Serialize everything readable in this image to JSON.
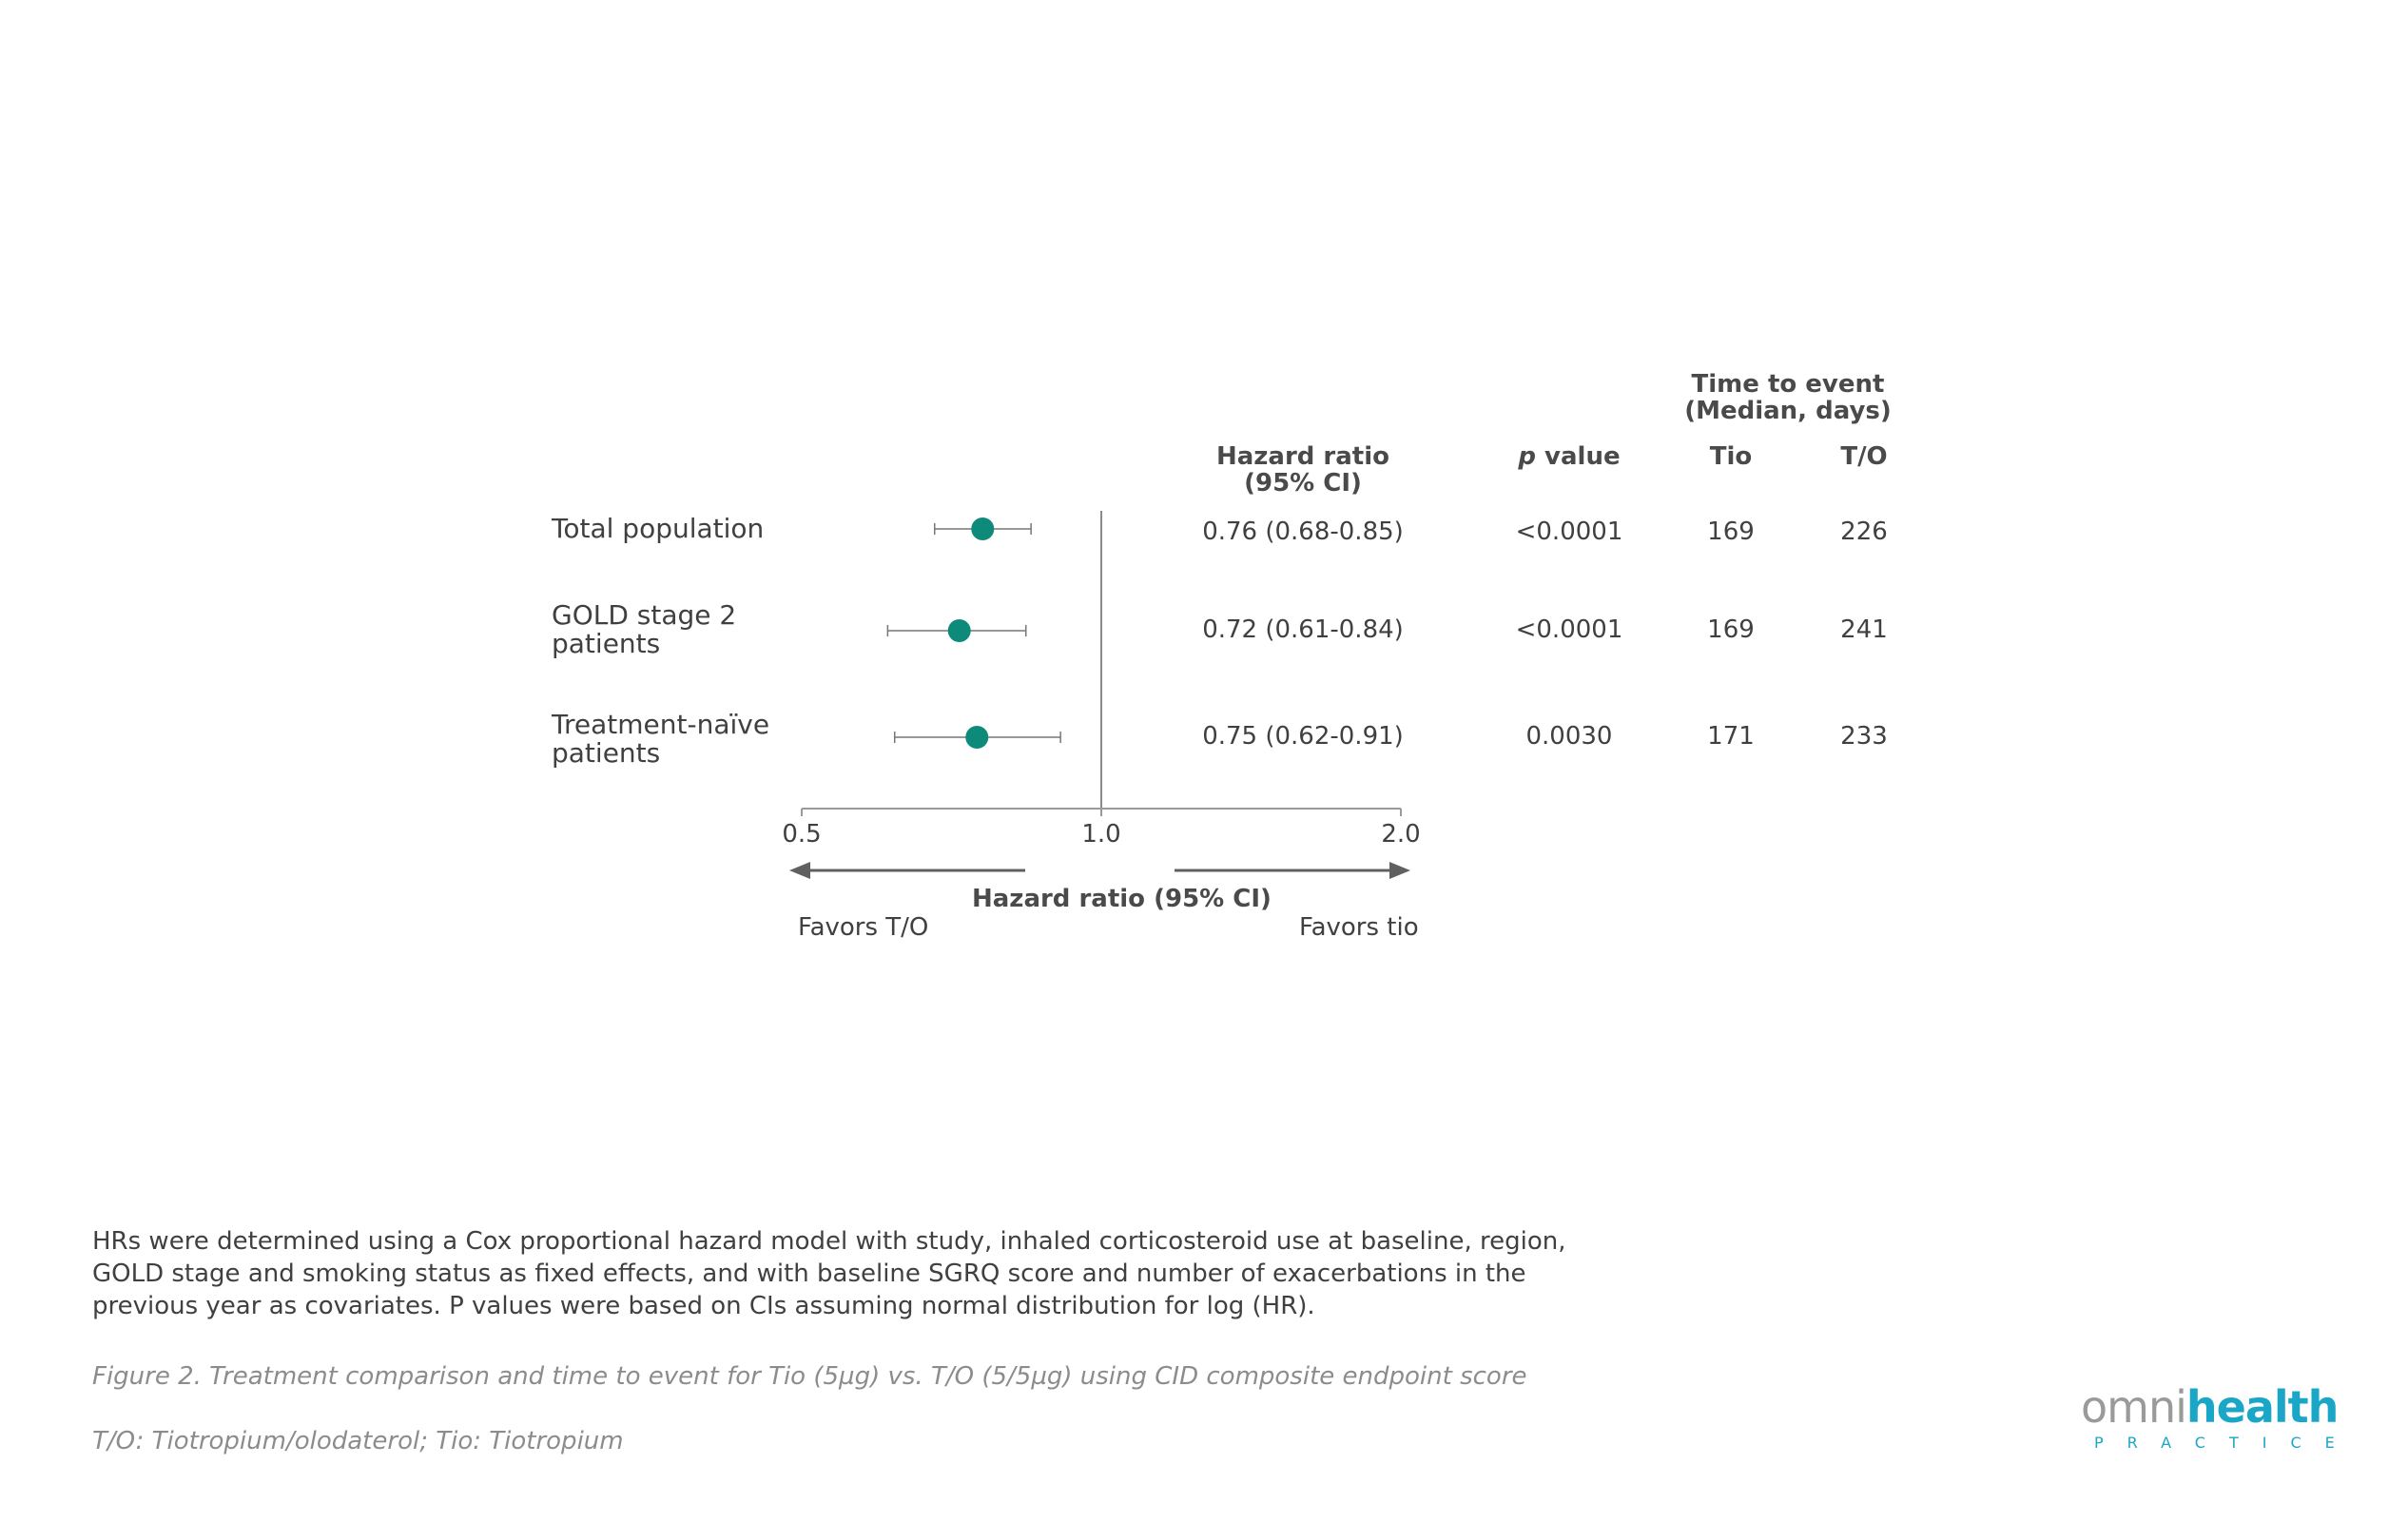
{
  "chart_data": {
    "type": "forest",
    "x_scale": "log",
    "xlim": [
      0.5,
      2.0
    ],
    "reference_line": 1.0,
    "x_ticks": [
      "0.5",
      "1.0",
      "2.0"
    ],
    "xlabel": "Hazard ratio (95% CI)",
    "favors_left": "Favors T/O",
    "favors_right": "Favors tio",
    "headers": {
      "time_to_event_line1": "Time to event",
      "time_to_event_line2": "(Median, days)",
      "hr_line1": "Hazard ratio",
      "hr_line2": "(95% CI)",
      "p_italic": "p",
      "p_rest": " value",
      "tio": "Tio",
      "to": "T/O"
    },
    "rows": [
      {
        "label_line1": "Total population",
        "label_line2": "",
        "hr": 0.76,
        "ci_low": 0.68,
        "ci_high": 0.85,
        "hr_text": "0.76 (0.68-0.85)",
        "p": "<0.0001",
        "tio": "169",
        "to": "226"
      },
      {
        "label_line1": "GOLD stage 2",
        "label_line2": "patients",
        "hr": 0.72,
        "ci_low": 0.61,
        "ci_high": 0.84,
        "hr_text": "0.72 (0.61-0.84)",
        "p": "<0.0001",
        "tio": "169",
        "to": "241"
      },
      {
        "label_line1": "Treatment-naïve",
        "label_line2": "patients",
        "hr": 0.75,
        "ci_low": 0.62,
        "ci_high": 0.91,
        "hr_text": "0.75 (0.62-0.91)",
        "p": "0.0030",
        "tio": "171",
        "to": "233"
      }
    ],
    "marker_color": "#0e8a7a"
  },
  "footnote": "HRs were determined using a Cox proportional hazard model with study, inhaled corticosteroid use at baseline, region, GOLD stage and smoking status as fixed effects, and with baseline SGRQ score and number of exacerbations in the previous year as covariates. P values were based on CIs assuming normal distribution for log (HR).",
  "caption": "Figure 2. Treatment comparison and time to event for Tio (5µg) vs. T/O (5/5µg) using CID composite endpoint score",
  "abbreviations": "T/O: Tiotropium/olodaterol; Tio: Tiotropium",
  "logo": {
    "name_part1": "omni",
    "name_part2": "health",
    "subtitle": "PRACTICE",
    "color": "#1aa7c7"
  }
}
